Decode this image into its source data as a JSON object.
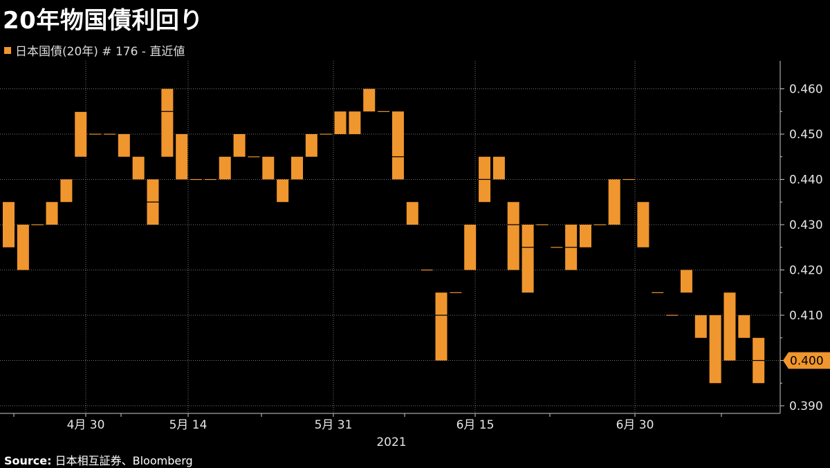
{
  "header": {
    "title": "20年物国債利回り",
    "legend_label": "日本国債(20年) # 176 - 直近値"
  },
  "footer": {
    "source_label": "Source:",
    "source_text": "日本相互証券、Bloomberg"
  },
  "colors": {
    "bar": "#f0962e",
    "grid": "#777777",
    "background": "#000000"
  },
  "chart_data": {
    "type": "candlestick",
    "title": "20年物国債利回り",
    "series_name": "日本国債(20年) # 176 - 直近値",
    "x_axis": {
      "ticks": [
        "4月 30",
        "5月 14",
        "5月 31",
        "6月 15",
        "6月 30"
      ],
      "year_label": "2021"
    },
    "y_axis": {
      "min": 0.388,
      "max": 0.465,
      "ticks": [
        0.39,
        0.4,
        0.41,
        0.42,
        0.43,
        0.44,
        0.45,
        0.46
      ],
      "tick_labels": [
        "0.390",
        "0.400",
        "0.410",
        "0.420",
        "0.430",
        "0.440",
        "0.450",
        "0.460"
      ],
      "position": "right"
    },
    "current_value": 0.4,
    "current_label": "0.400",
    "grid": true,
    "legend_position": "top-left",
    "bars": [
      {
        "low": 0.425,
        "high": 0.435
      },
      {
        "low": 0.42,
        "high": 0.43
      },
      {
        "low": 0.43,
        "high": 0.43
      },
      {
        "low": 0.43,
        "high": 0.435
      },
      {
        "low": 0.435,
        "high": 0.44
      },
      {
        "low": 0.445,
        "high": 0.455,
        "mid": 0.455
      },
      {
        "low": 0.45,
        "high": 0.45
      },
      {
        "low": 0.45,
        "high": 0.45
      },
      {
        "low": 0.445,
        "high": 0.45
      },
      {
        "low": 0.44,
        "high": 0.445
      },
      {
        "low": 0.43,
        "high": 0.44,
        "mid": 0.435
      },
      {
        "low": 0.445,
        "high": 0.46,
        "mid": 0.455
      },
      {
        "low": 0.44,
        "high": 0.45
      },
      {
        "low": 0.44,
        "high": 0.44
      },
      {
        "low": 0.44,
        "high": 0.44
      },
      {
        "low": 0.44,
        "high": 0.445
      },
      {
        "low": 0.445,
        "high": 0.45
      },
      {
        "low": 0.445,
        "high": 0.445
      },
      {
        "low": 0.44,
        "high": 0.445
      },
      {
        "low": 0.435,
        "high": 0.44
      },
      {
        "low": 0.44,
        "high": 0.445
      },
      {
        "low": 0.445,
        "high": 0.45
      },
      {
        "low": 0.45,
        "high": 0.45
      },
      {
        "low": 0.45,
        "high": 0.455
      },
      {
        "low": 0.45,
        "high": 0.455
      },
      {
        "low": 0.455,
        "high": 0.46
      },
      {
        "low": 0.455,
        "high": 0.455
      },
      {
        "low": 0.44,
        "high": 0.455,
        "mid": 0.445
      },
      {
        "low": 0.43,
        "high": 0.435
      },
      {
        "low": 0.42,
        "high": 0.42
      },
      {
        "low": 0.4,
        "high": 0.415,
        "mid": 0.41
      },
      {
        "low": 0.415,
        "high": 0.415
      },
      {
        "low": 0.42,
        "high": 0.43
      },
      {
        "low": 0.435,
        "high": 0.445,
        "mid": 0.44
      },
      {
        "low": 0.44,
        "high": 0.445
      },
      {
        "low": 0.42,
        "high": 0.435,
        "mid": 0.43
      },
      {
        "low": 0.415,
        "high": 0.43,
        "mid": 0.425
      },
      {
        "low": 0.43,
        "high": 0.43
      },
      {
        "low": 0.425,
        "high": 0.425
      },
      {
        "low": 0.42,
        "high": 0.43,
        "mid": 0.425
      },
      {
        "low": 0.425,
        "high": 0.43
      },
      {
        "low": 0.43,
        "high": 0.43
      },
      {
        "low": 0.43,
        "high": 0.44
      },
      {
        "low": 0.44,
        "high": 0.44
      },
      {
        "low": 0.425,
        "high": 0.435
      },
      {
        "low": 0.415,
        "high": 0.415
      },
      {
        "low": 0.41,
        "high": 0.41
      },
      {
        "low": 0.415,
        "high": 0.42
      },
      {
        "low": 0.405,
        "high": 0.41
      },
      {
        "low": 0.395,
        "high": 0.41
      },
      {
        "low": 0.4,
        "high": 0.415
      },
      {
        "low": 0.405,
        "high": 0.41
      },
      {
        "low": 0.395,
        "high": 0.405,
        "mid": 0.4
      }
    ]
  }
}
